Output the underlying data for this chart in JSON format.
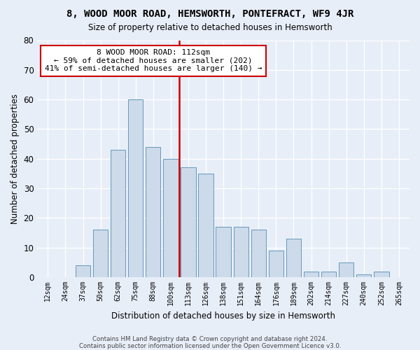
{
  "title": "8, WOOD MOOR ROAD, HEMSWORTH, PONTEFRACT, WF9 4JR",
  "subtitle": "Size of property relative to detached houses in Hemsworth",
  "xlabel": "Distribution of detached houses by size in Hemsworth",
  "ylabel": "Number of detached properties",
  "bar_color": "#ccdaea",
  "bar_edge_color": "#6699bb",
  "background_color": "#e8eef8",
  "grid_color": "#ffffff",
  "categories": [
    "12sqm",
    "24sqm",
    "37sqm",
    "50sqm",
    "62sqm",
    "75sqm",
    "88sqm",
    "100sqm",
    "113sqm",
    "126sqm",
    "138sqm",
    "151sqm",
    "164sqm",
    "176sqm",
    "189sqm",
    "202sqm",
    "214sqm",
    "227sqm",
    "240sqm",
    "252sqm",
    "265sqm"
  ],
  "values": [
    0,
    0,
    4,
    16,
    43,
    60,
    44,
    40,
    37,
    35,
    17,
    17,
    16,
    9,
    13,
    2,
    2,
    5,
    1,
    2,
    0
  ],
  "marker_bin_index": 8,
  "annotation_line1": "8 WOOD MOOR ROAD: 112sqm",
  "annotation_line2": "← 59% of detached houses are smaller (202)",
  "annotation_line3": "41% of semi-detached houses are larger (140) →",
  "annotation_box_color": "#ffffff",
  "annotation_border_color": "#cc0000",
  "vline_color": "#cc0000",
  "ylim": [
    0,
    80
  ],
  "yticks": [
    0,
    10,
    20,
    30,
    40,
    50,
    60,
    70,
    80
  ],
  "footer1": "Contains HM Land Registry data © Crown copyright and database right 2024.",
  "footer2": "Contains public sector information licensed under the Open Government Licence v3.0."
}
